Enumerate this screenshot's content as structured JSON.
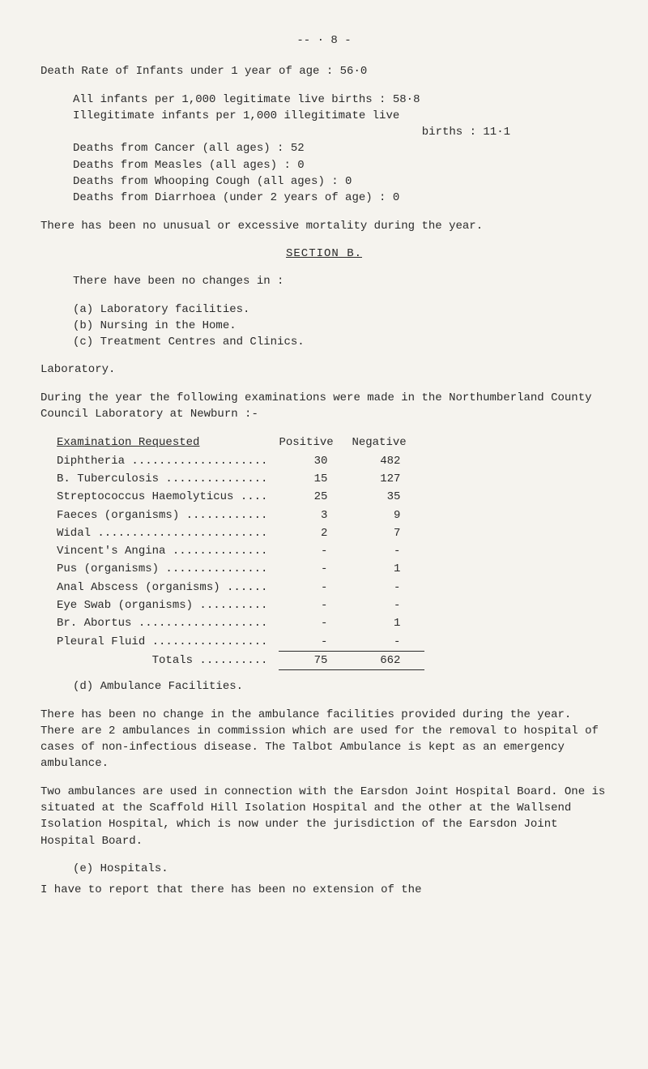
{
  "page_number": "-- · 8 -",
  "death_rate_heading": "Death Rate of Infants under 1 year of age : 56·0",
  "births_line1": "All infants per 1,000 legitimate live births : 58·8",
  "births_line2": "Illegitimate infants per 1,000 illegitimate live",
  "births_line3": "births : 11·1",
  "deaths_cancer": "Deaths from Cancer (all ages) : 52",
  "deaths_measles": "Deaths from Measles (all ages) : 0",
  "deaths_whooping": "Deaths from Whooping Cough (all ages) : 0",
  "deaths_diarrhoea": "Deaths from Diarrhoea (under 2 years of age) : 0",
  "unusual": "There has been no unusual or excessive mortality during the year.",
  "section_b": "SECTION B.",
  "changes_heading": "There have been no changes in :",
  "change_a": "(a) Laboratory facilities.",
  "change_b": "(b) Nursing in the Home.",
  "change_c": "(c) Treatment Centres and Clinics.",
  "lab_heading": "Laboratory.",
  "lab_para": "During the year the following examinations were made in the Northumberland County Council Laboratory at Newburn :-",
  "table": {
    "header": [
      "Examination Requested",
      "Positive",
      "Negative"
    ],
    "rows": [
      [
        "Diphtheria",
        "30",
        "482"
      ],
      [
        "B. Tuberculosis",
        "15",
        "127"
      ],
      [
        "Streptococcus Haemolyticus",
        "25",
        "35"
      ],
      [
        "Faeces (organisms)",
        "3",
        "9"
      ],
      [
        "Widal",
        "2",
        "7"
      ],
      [
        "Vincent's Angina",
        "-",
        "-"
      ],
      [
        "Pus (organisms)",
        "-",
        "1"
      ],
      [
        "Anal Abscess (organisms)",
        "-",
        "-"
      ],
      [
        "Eye Swab (organisms)",
        "-",
        "-"
      ],
      [
        "Br. Abortus",
        "-",
        "1"
      ],
      [
        "Pleural Fluid",
        "-",
        "-"
      ]
    ],
    "totals_label": "Totals ..........",
    "totals": [
      "75",
      "662"
    ]
  },
  "facilities_d": "(d) Ambulance Facilities.",
  "amb_para1": "There has been no change in the ambulance facilities provided during the year.  There are 2 ambulances in commission which are used for the removal to hospital of cases of non-infectious disease.  The Talbot Ambulance is kept as an emergency ambulance.",
  "amb_para2": "Two ambulances are used in connection with the Earsdon Joint Hospital Board.  One is situated at the Scaffold Hill Isolation Hospital and the other at the Wallsend Isolation Hospital, which is now under the jurisdiction of the Earsdon Joint Hospital Board.",
  "hospitals_e": "(e) Hospitals.",
  "hosp_para": "I have to report that there has been no extension of the",
  "dots_suffix": " ........................"
}
